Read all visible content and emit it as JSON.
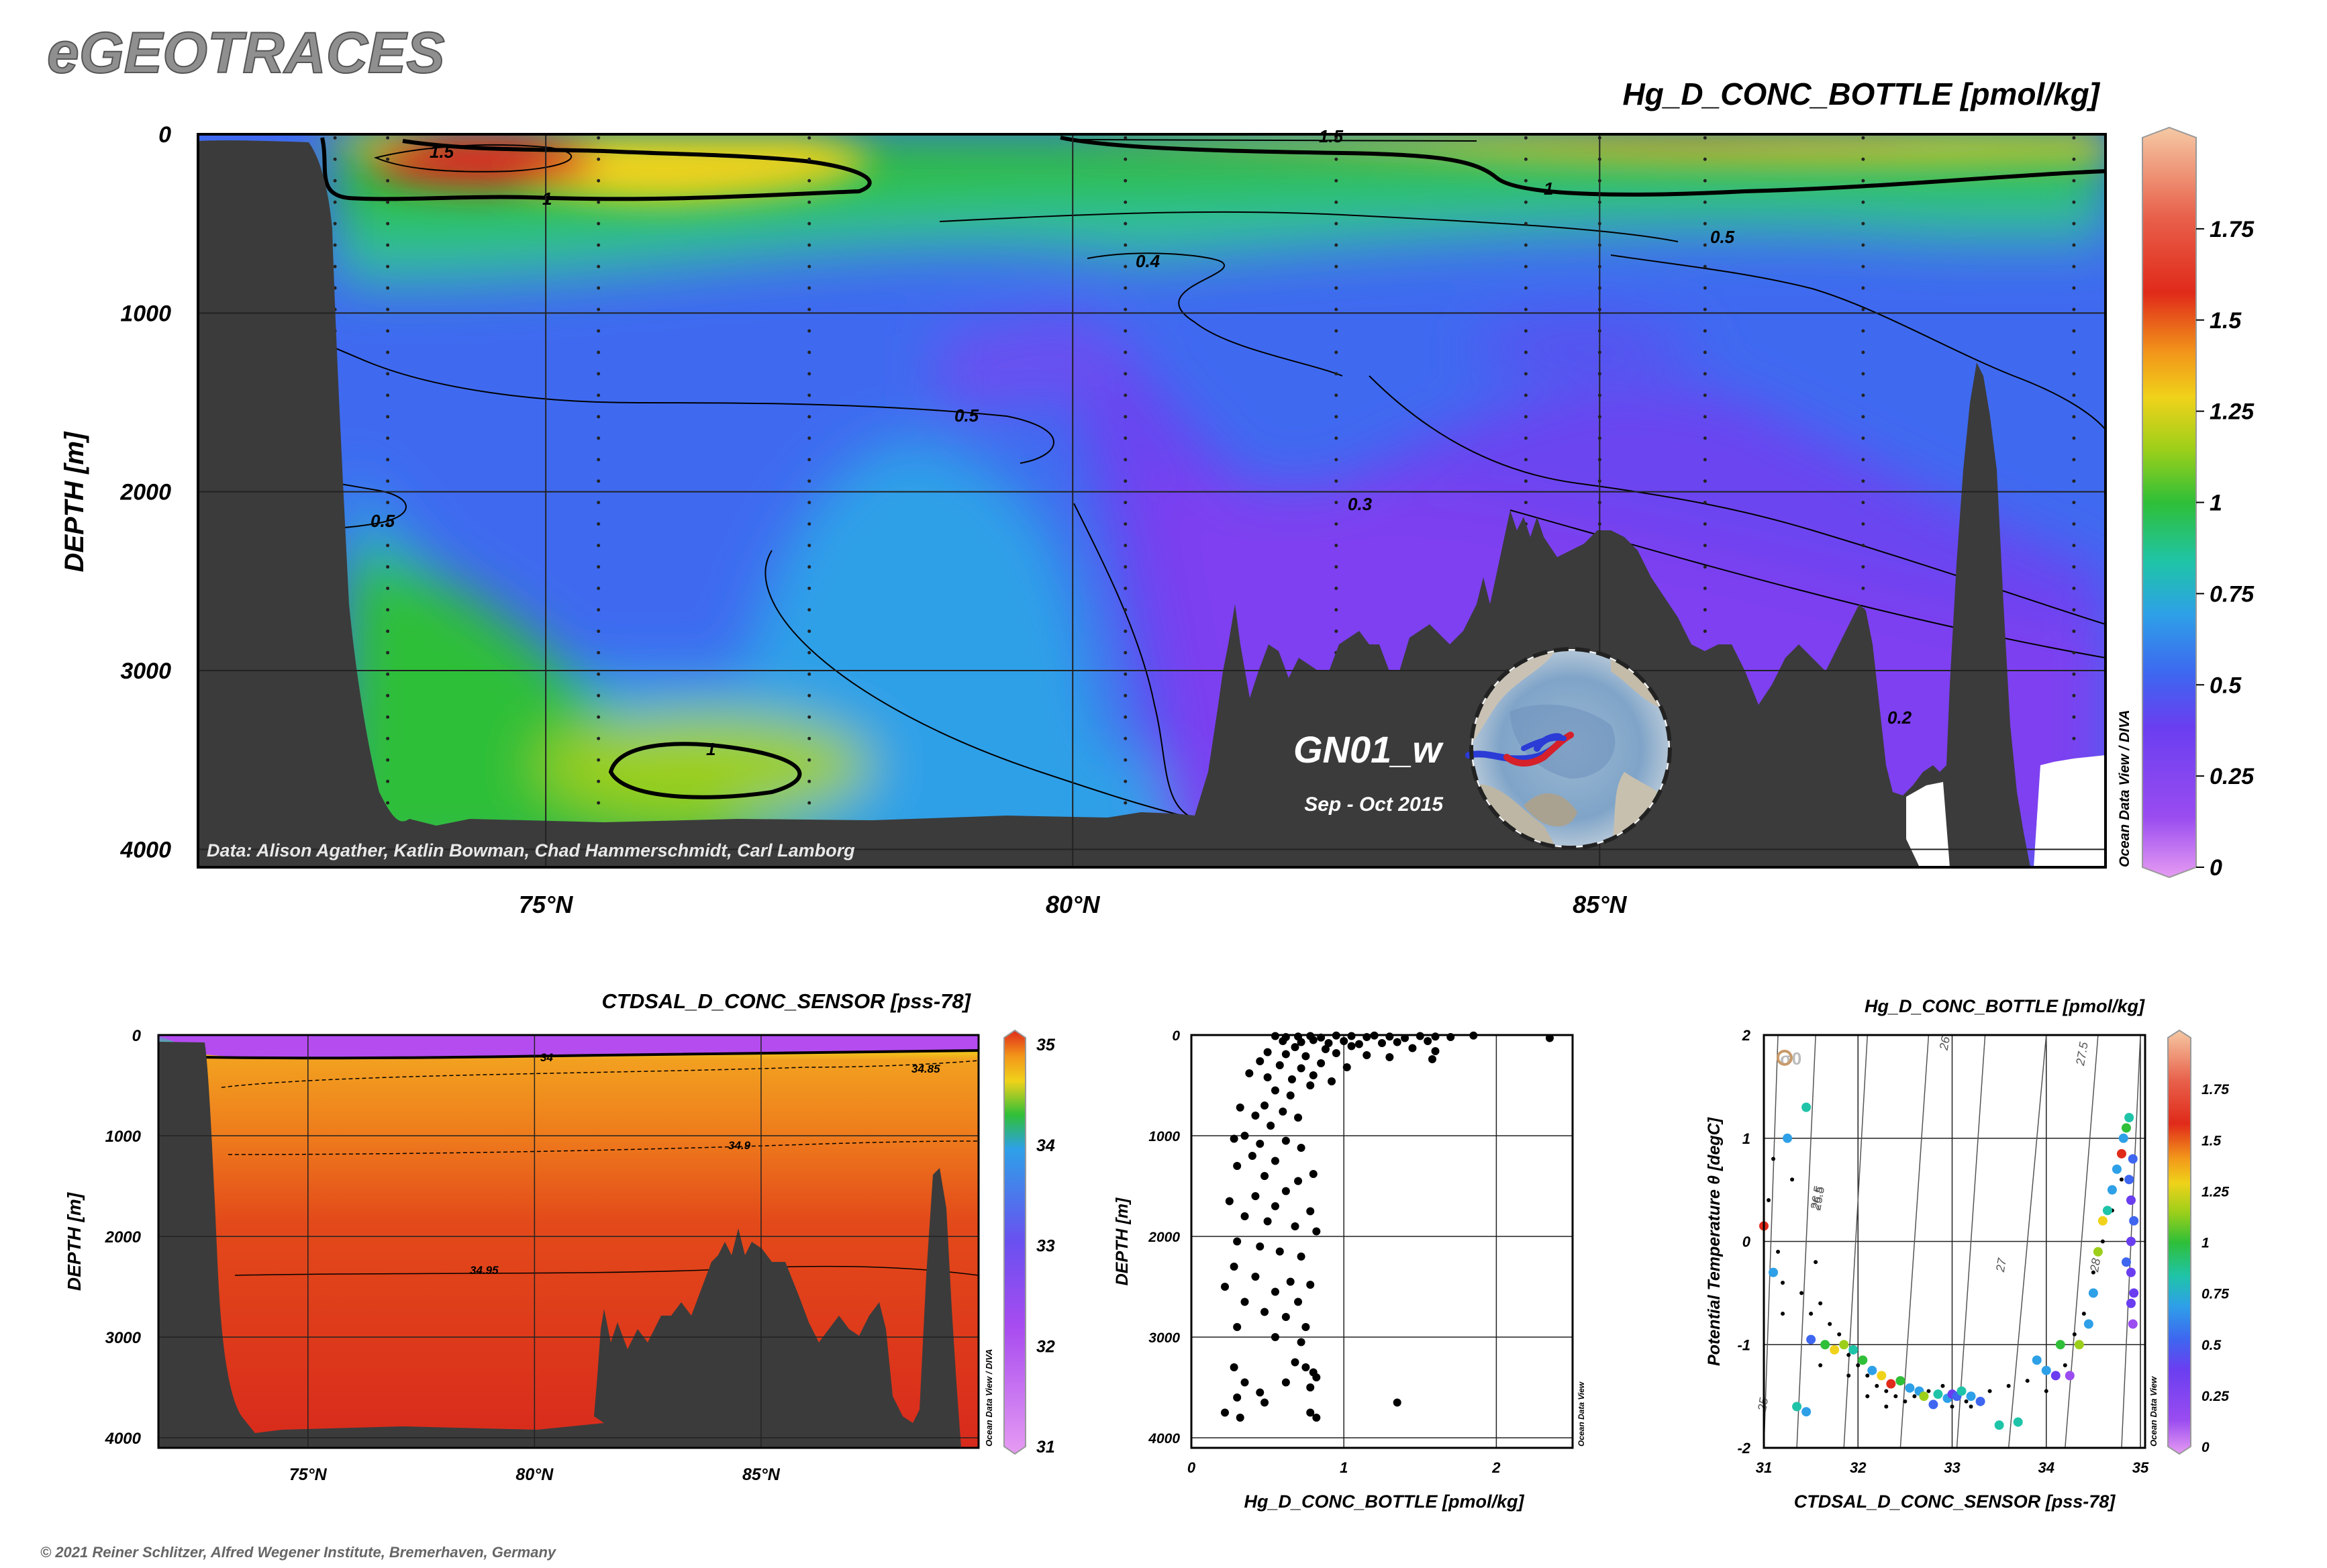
{
  "brand": "eGEOTRACES",
  "copyright": "© 2021 Reiner Schlitzer, Alfred Wegener Institute, Bremerhaven, Germany",
  "colors": {
    "land": "#3b3b3b",
    "accent_title": "#000000",
    "brand_fill": "#8f8f8f",
    "brand_stroke": "#555555"
  },
  "chart_data": [
    {
      "id": "main-section",
      "type": "heatmap",
      "title": "Hg_D_CONC_BOTTLE [pmol/kg]",
      "ylabel": "DEPTH [m]",
      "xlabel": "",
      "x_ticks": [
        "75°N",
        "80°N",
        "85°N"
      ],
      "x_tick_values": [
        75,
        80,
        85
      ],
      "y_ticks": [
        "0",
        "1000",
        "2000",
        "3000",
        "4000"
      ],
      "y_tick_values": [
        0,
        1000,
        2000,
        3000,
        4000
      ],
      "xlim": [
        71.7,
        89.8
      ],
      "ylim": [
        0,
        4100
      ],
      "grid": true,
      "colorbar": {
        "ticks": [
          "0",
          "0.25",
          "0.5",
          "0.75",
          "1",
          "1.25",
          "1.5",
          "1.75"
        ],
        "tick_values": [
          0,
          0.25,
          0.5,
          0.75,
          1,
          1.25,
          1.5,
          1.75
        ],
        "range": [
          0,
          2
        ],
        "side_label": "Ocean Data View / DIVA"
      },
      "contour_labels": [
        "1.5",
        "1",
        "1",
        "1.5",
        "0.4",
        "0.5",
        "0.5",
        "0.5",
        "0.3",
        "0.2",
        "1"
      ],
      "data_credit": "Data: Alison Agather, Katlin Bowman, Chad Hammerschmidt, Carl Lamborg",
      "section_name": "GN01_w",
      "section_dates": "Sep - Oct 2015",
      "stations_lat": [
        73.0,
        73.5,
        75.5,
        77.5,
        80.5,
        82.5,
        84.3,
        85.0,
        86.0,
        87.5,
        89.5
      ]
    },
    {
      "id": "salinity-section",
      "type": "heatmap",
      "title": "CTDSAL_D_CONC_SENSOR [pss-78]",
      "ylabel": "DEPTH [m]",
      "xlabel": "",
      "x_ticks": [
        "75°N",
        "80°N",
        "85°N"
      ],
      "x_tick_values": [
        75,
        80,
        85
      ],
      "y_ticks": [
        "0",
        "1000",
        "2000",
        "3000",
        "4000"
      ],
      "y_tick_values": [
        0,
        1000,
        2000,
        3000,
        4000
      ],
      "xlim": [
        71.7,
        89.8
      ],
      "ylim": [
        0,
        4100
      ],
      "colorbar": {
        "ticks": [
          "31",
          "32",
          "33",
          "34",
          "35"
        ],
        "tick_values": [
          31,
          32,
          33,
          34,
          35
        ],
        "range": [
          31,
          35
        ],
        "side_label": "Ocean Data View / DIVA"
      },
      "contour_labels": [
        "34",
        "34.85",
        "34.9",
        "34.95"
      ]
    },
    {
      "id": "profile-scatter",
      "type": "scatter",
      "xlabel": "Hg_D_CONC_BOTTLE [pmol/kg]",
      "ylabel": "DEPTH [m]",
      "x_ticks": [
        "0",
        "1",
        "2"
      ],
      "x_tick_values": [
        0,
        1,
        2
      ],
      "y_ticks": [
        "0",
        "1000",
        "2000",
        "3000",
        "4000"
      ],
      "y_tick_values": [
        0,
        1000,
        2000,
        3000,
        4000
      ],
      "xlim": [
        0,
        2.5
      ],
      "ylim": [
        0,
        4100
      ],
      "grid": true,
      "side_label": "Ocean Data View",
      "points": [
        [
          0.55,
          10
        ],
        [
          0.62,
          20
        ],
        [
          0.7,
          15
        ],
        [
          0.78,
          10
        ],
        [
          0.85,
          25
        ],
        [
          0.95,
          5
        ],
        [
          1.05,
          10
        ],
        [
          1.15,
          20
        ],
        [
          1.2,
          5
        ],
        [
          1.3,
          15
        ],
        [
          1.4,
          30
        ],
        [
          1.5,
          10
        ],
        [
          1.6,
          15
        ],
        [
          1.7,
          20
        ],
        [
          1.85,
          5
        ],
        [
          2.35,
          30
        ],
        [
          0.6,
          60
        ],
        [
          0.72,
          70
        ],
        [
          0.8,
          50
        ],
        [
          0.9,
          80
        ],
        [
          1.0,
          60
        ],
        [
          1.1,
          90
        ],
        [
          1.25,
          80
        ],
        [
          1.35,
          70
        ],
        [
          1.55,
          60
        ],
        [
          0.68,
          120
        ],
        [
          0.88,
          140
        ],
        [
          1.05,
          110
        ],
        [
          1.45,
          130
        ],
        [
          1.6,
          160
        ],
        [
          0.5,
          170
        ],
        [
          0.62,
          190
        ],
        [
          0.75,
          210
        ],
        [
          0.95,
          180
        ],
        [
          1.15,
          200
        ],
        [
          1.3,
          220
        ],
        [
          1.58,
          240
        ],
        [
          0.45,
          260
        ],
        [
          0.58,
          300
        ],
        [
          0.72,
          330
        ],
        [
          0.85,
          280
        ],
        [
          1.02,
          320
        ],
        [
          0.38,
          380
        ],
        [
          0.5,
          420
        ],
        [
          0.66,
          440
        ],
        [
          0.8,
          400
        ],
        [
          0.92,
          460
        ],
        [
          0.78,
          500
        ],
        [
          0.55,
          550
        ],
        [
          0.65,
          600
        ],
        [
          0.48,
          700
        ],
        [
          0.32,
          720
        ],
        [
          0.42,
          800
        ],
        [
          0.6,
          760
        ],
        [
          0.7,
          820
        ],
        [
          0.52,
          900
        ],
        [
          0.35,
          1000
        ],
        [
          0.28,
          1030
        ],
        [
          0.45,
          1080
        ],
        [
          0.62,
          1050
        ],
        [
          0.72,
          1120
        ],
        [
          0.4,
          1200
        ],
        [
          0.55,
          1250
        ],
        [
          0.3,
          1300
        ],
        [
          0.48,
          1400
        ],
        [
          0.7,
          1450
        ],
        [
          0.8,
          1380
        ],
        [
          0.62,
          1550
        ],
        [
          0.42,
          1600
        ],
        [
          0.25,
          1650
        ],
        [
          0.55,
          1700
        ],
        [
          0.78,
          1750
        ],
        [
          0.35,
          1800
        ],
        [
          0.5,
          1850
        ],
        [
          0.68,
          1900
        ],
        [
          0.82,
          1950
        ],
        [
          0.3,
          2050
        ],
        [
          0.45,
          2100
        ],
        [
          0.58,
          2150
        ],
        [
          0.72,
          2200
        ],
        [
          0.28,
          2300
        ],
        [
          0.42,
          2400
        ],
        [
          0.65,
          2450
        ],
        [
          0.78,
          2480
        ],
        [
          0.22,
          2500
        ],
        [
          0.55,
          2550
        ],
        [
          0.35,
          2650
        ],
        [
          0.7,
          2650
        ],
        [
          0.48,
          2750
        ],
        [
          0.62,
          2800
        ],
        [
          0.3,
          2900
        ],
        [
          0.75,
          2900
        ],
        [
          0.55,
          3000
        ],
        [
          0.72,
          3050
        ],
        [
          0.28,
          3300
        ],
        [
          0.68,
          3250
        ],
        [
          0.75,
          3300
        ],
        [
          0.8,
          3350
        ],
        [
          0.35,
          3450
        ],
        [
          0.62,
          3450
        ],
        [
          0.82,
          3400
        ],
        [
          0.45,
          3550
        ],
        [
          0.78,
          3500
        ],
        [
          0.3,
          3600
        ],
        [
          0.48,
          3650
        ],
        [
          0.22,
          3750
        ],
        [
          0.32,
          3800
        ],
        [
          0.78,
          3750
        ],
        [
          0.82,
          3800
        ],
        [
          1.35,
          3650
        ]
      ]
    },
    {
      "id": "ts-diagram",
      "type": "scatter",
      "title": "Hg_D_CONC_BOTTLE [pmol/kg]",
      "xlabel": "CTDSAL_D_CONC_SENSOR [pss-78]",
      "ylabel": "Potential Temperature θ [degC]",
      "x_ticks": [
        "31",
        "32",
        "33",
        "34",
        "35"
      ],
      "x_tick_values": [
        31,
        32,
        33,
        34,
        35
      ],
      "y_ticks": [
        "2",
        "1",
        "0",
        "-1",
        "-2"
      ],
      "y_tick_values": [
        2,
        1,
        0,
        -1,
        -2
      ],
      "xlim": [
        31,
        35.05
      ],
      "ylim": [
        -2,
        2
      ],
      "sigma_label": "σ0",
      "isopycnal_labels": [
        "25",
        "25.5",
        "26",
        "26.5",
        "27",
        "27.5",
        "28"
      ],
      "colorbar": {
        "ticks": [
          "0",
          "0.25",
          "0.5",
          "0.75",
          "1",
          "1.25",
          "1.5",
          "1.75"
        ],
        "tick_values": [
          0,
          0.25,
          0.5,
          0.75,
          1,
          1.25,
          1.5,
          1.75
        ],
        "range": [
          0,
          2
        ],
        "side_label": "Ocean Data View"
      },
      "points": [
        [
          31.0,
          0.15,
          1.6
        ],
        [
          31.1,
          -0.3,
          0.7
        ],
        [
          31.25,
          1.0,
          0.7
        ],
        [
          31.45,
          1.3,
          0.9
        ],
        [
          31.5,
          -0.95,
          0.55
        ],
        [
          31.35,
          -1.6,
          0.9
        ],
        [
          31.45,
          -1.65,
          0.8
        ],
        [
          31.65,
          -1.0,
          1.1
        ],
        [
          31.75,
          -1.05,
          1.35
        ],
        [
          31.85,
          -1.0,
          1.2
        ],
        [
          31.95,
          -1.05,
          0.9
        ],
        [
          32.05,
          -1.15,
          1.0
        ],
        [
          32.15,
          -1.25,
          0.8
        ],
        [
          32.25,
          -1.3,
          1.3
        ],
        [
          32.35,
          -1.38,
          1.7
        ],
        [
          32.45,
          -1.35,
          1.0
        ],
        [
          32.55,
          -1.42,
          0.8
        ],
        [
          32.65,
          -1.45,
          0.7
        ],
        [
          32.7,
          -1.5,
          1.25
        ],
        [
          32.8,
          -1.58,
          0.6
        ],
        [
          32.85,
          -1.48,
          0.9
        ],
        [
          32.95,
          -1.52,
          0.75
        ],
        [
          33.0,
          -1.48,
          0.5
        ],
        [
          33.05,
          -1.5,
          0.65
        ],
        [
          33.1,
          -1.45,
          0.85
        ],
        [
          33.2,
          -1.5,
          0.7
        ],
        [
          33.3,
          -1.55,
          0.6
        ],
        [
          33.5,
          -1.78,
          0.85
        ],
        [
          33.7,
          -1.75,
          0.9
        ],
        [
          33.9,
          -1.15,
          0.8
        ],
        [
          34.0,
          -1.25,
          0.75
        ],
        [
          34.1,
          -1.3,
          0.5
        ],
        [
          34.15,
          -1.0,
          1.0
        ],
        [
          34.25,
          -1.3,
          0.35
        ],
        [
          34.35,
          -1.0,
          1.25
        ],
        [
          34.45,
          -0.8,
          0.7
        ],
        [
          34.5,
          -0.5,
          0.75
        ],
        [
          34.55,
          -0.1,
          1.25
        ],
        [
          34.6,
          0.2,
          1.3
        ],
        [
          34.65,
          0.3,
          0.9
        ],
        [
          34.7,
          0.5,
          0.75
        ],
        [
          34.75,
          0.7,
          0.7
        ],
        [
          34.8,
          0.85,
          1.6
        ],
        [
          34.82,
          1.0,
          0.7
        ],
        [
          34.85,
          1.1,
          1.0
        ],
        [
          34.88,
          1.2,
          0.9
        ],
        [
          34.9,
          0.4,
          0.5
        ],
        [
          34.9,
          0.0,
          0.45
        ],
        [
          34.9,
          -0.3,
          0.4
        ],
        [
          34.9,
          -0.6,
          0.4
        ],
        [
          34.92,
          -0.8,
          0.35
        ],
        [
          34.92,
          0.8,
          0.6
        ],
        [
          34.93,
          0.2,
          0.55
        ],
        [
          34.93,
          -0.5,
          0.45
        ],
        [
          34.85,
          -0.2,
          0.6
        ],
        [
          34.88,
          0.6,
          0.65
        ]
      ],
      "small_points": [
        [
          31.05,
          0.4
        ],
        [
          31.1,
          0.8
        ],
        [
          31.15,
          -0.1
        ],
        [
          31.2,
          -0.4
        ],
        [
          31.3,
          0.6
        ],
        [
          31.4,
          -0.5
        ],
        [
          31.5,
          -0.7
        ],
        [
          31.55,
          -0.2
        ],
        [
          31.6,
          -0.6
        ],
        [
          31.7,
          -0.8
        ],
        [
          31.2,
          -0.7
        ],
        [
          31.8,
          -0.9
        ],
        [
          31.9,
          -1.1
        ],
        [
          32.0,
          -1.2
        ],
        [
          32.1,
          -1.3
        ],
        [
          32.2,
          -1.4
        ],
        [
          32.3,
          -1.45
        ],
        [
          32.4,
          -1.5
        ],
        [
          32.5,
          -1.55
        ],
        [
          32.6,
          -1.5
        ],
        [
          32.75,
          -1.45
        ],
        [
          32.9,
          -1.4
        ],
        [
          33.15,
          -1.55
        ],
        [
          33.4,
          -1.45
        ],
        [
          33.6,
          -1.4
        ],
        [
          33.8,
          -1.35
        ],
        [
          34.0,
          -1.45
        ],
        [
          34.2,
          -1.2
        ],
        [
          34.3,
          -0.9
        ],
        [
          34.4,
          -0.7
        ],
        [
          34.5,
          -0.3
        ],
        [
          34.6,
          0.0
        ],
        [
          34.7,
          0.3
        ],
        [
          34.8,
          0.6
        ],
        [
          31.6,
          -1.2
        ],
        [
          31.9,
          -1.3
        ],
        [
          32.1,
          -1.5
        ],
        [
          32.3,
          -1.6
        ],
        [
          33.0,
          -1.6
        ],
        [
          33.2,
          -1.6
        ]
      ]
    }
  ]
}
